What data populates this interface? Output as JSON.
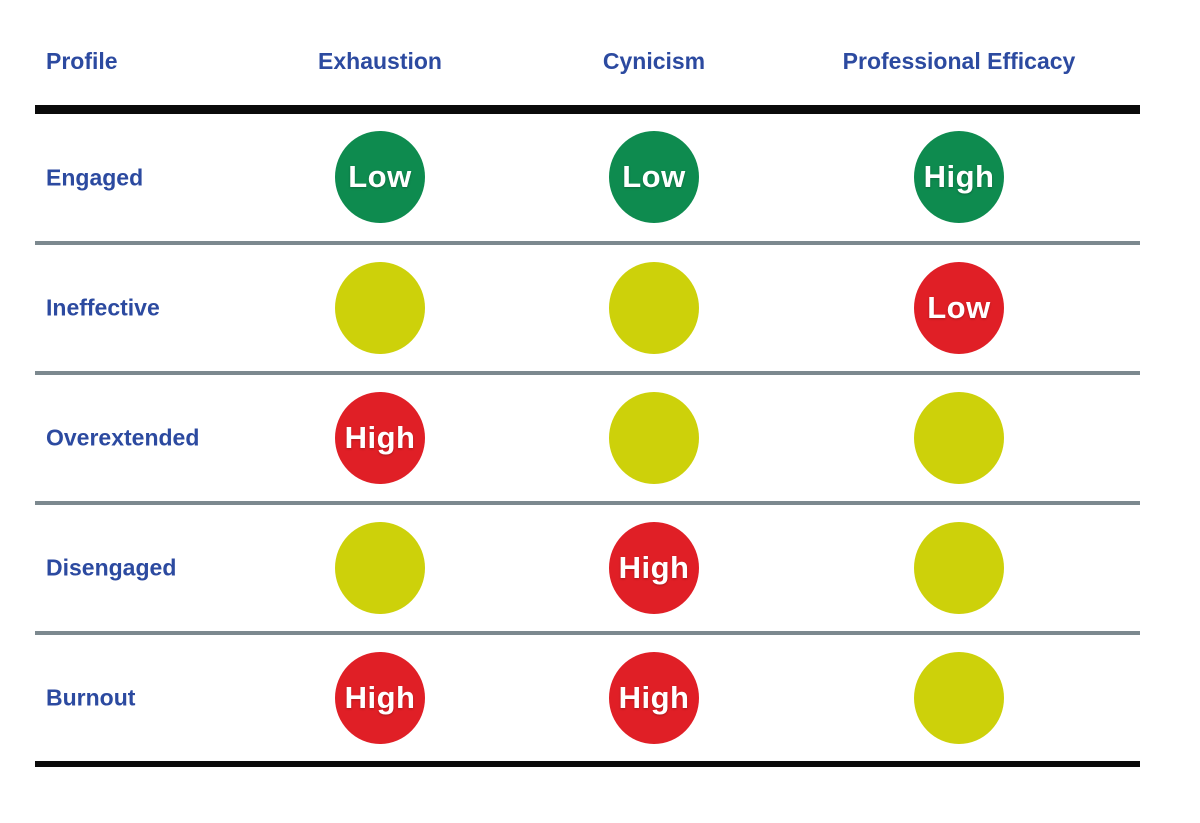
{
  "table": {
    "headers": [
      {
        "label": "Profile"
      },
      {
        "label": "Exhaustion"
      },
      {
        "label": "Cynicism"
      },
      {
        "label": "Professional Efficacy"
      }
    ],
    "rows": [
      {
        "profile": "Engaged",
        "exhaustion": {
          "level": "Low",
          "color": "green"
        },
        "cynicism": {
          "level": "Low",
          "color": "green"
        },
        "efficacy": {
          "level": "High",
          "color": "green"
        }
      },
      {
        "profile": "Ineffective",
        "exhaustion": {
          "level": "",
          "color": "yellow"
        },
        "cynicism": {
          "level": "",
          "color": "yellow"
        },
        "efficacy": {
          "level": "Low",
          "color": "red"
        }
      },
      {
        "profile": "Overextended",
        "exhaustion": {
          "level": "High",
          "color": "red"
        },
        "cynicism": {
          "level": "",
          "color": "yellow"
        },
        "efficacy": {
          "level": "",
          "color": "yellow"
        }
      },
      {
        "profile": "Disengaged",
        "exhaustion": {
          "level": "",
          "color": "yellow"
        },
        "cynicism": {
          "level": "High",
          "color": "red"
        },
        "efficacy": {
          "level": "",
          "color": "yellow"
        }
      },
      {
        "profile": "Burnout",
        "exhaustion": {
          "level": "High",
          "color": "red"
        },
        "cynicism": {
          "level": "High",
          "color": "red"
        },
        "efficacy": {
          "level": "",
          "color": "yellow"
        }
      }
    ],
    "colors": {
      "green": "#0E8B4F",
      "yellow": "#CDD10A",
      "red": "#E01F26",
      "header_text": "#2C4AA0",
      "separator_line": "#7C898F",
      "rule_line": "#0A0A0A"
    }
  },
  "chart_data": {
    "type": "table",
    "columns": [
      "Profile",
      "Exhaustion",
      "Cynicism",
      "Professional Efficacy"
    ],
    "rows": [
      {
        "profile": "Engaged",
        "exhaustion": "Low (green)",
        "cynicism": "Low (green)",
        "professional_efficacy": "High (green)"
      },
      {
        "profile": "Ineffective",
        "exhaustion": "unlabeled (yellow)",
        "cynicism": "unlabeled (yellow)",
        "professional_efficacy": "Low (red)"
      },
      {
        "profile": "Overextended",
        "exhaustion": "High (red)",
        "cynicism": "unlabeled (yellow)",
        "professional_efficacy": "unlabeled (yellow)"
      },
      {
        "profile": "Disengaged",
        "exhaustion": "unlabeled (yellow)",
        "cynicism": "High (red)",
        "professional_efficacy": "unlabeled (yellow)"
      },
      {
        "profile": "Burnout",
        "exhaustion": "High (red)",
        "cynicism": "High (red)",
        "professional_efficacy": "unlabeled (yellow)"
      }
    ]
  }
}
